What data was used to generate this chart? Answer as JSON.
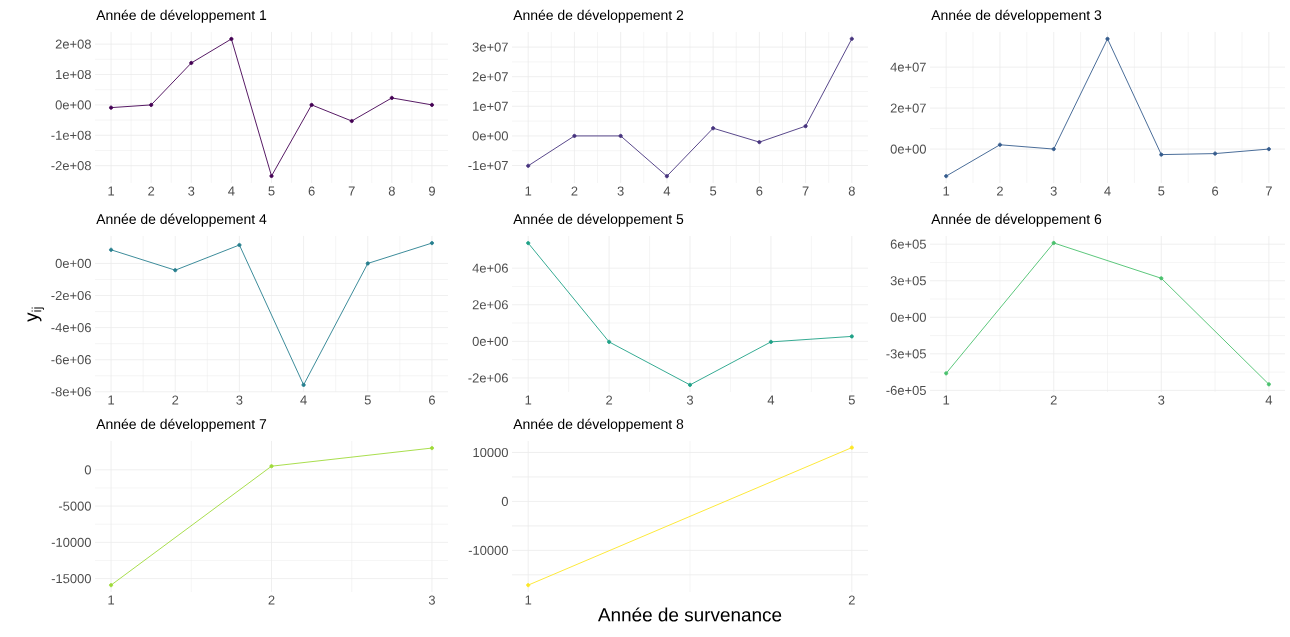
{
  "chart_data": [
    {
      "type": "line",
      "title": "Année de développement 1",
      "x": [
        1,
        2,
        3,
        4,
        5,
        6,
        7,
        8,
        9
      ],
      "values": [
        -9000000,
        0,
        138000000,
        217000000,
        -234000000,
        0,
        -53000000,
        23000000,
        0
      ],
      "color": "#440154",
      "xlim": [
        0.6,
        9.4
      ],
      "ylim": [
        -257000000,
        240000000
      ],
      "xticks": [
        1,
        2,
        3,
        4,
        5,
        6,
        7,
        8,
        9
      ],
      "yticks": [
        {
          "value": -200000000,
          "label": "-2e+08"
        },
        {
          "value": -100000000,
          "label": "-1e+08"
        },
        {
          "value": 0,
          "label": "0e+00"
        },
        {
          "value": 100000000,
          "label": "1e+08"
        },
        {
          "value": 200000000,
          "label": "2e+08"
        }
      ],
      "grid": true,
      "marker": "circle",
      "line_style": "solid"
    },
    {
      "type": "line",
      "title": "Année de développement 2",
      "x": [
        1,
        2,
        3,
        4,
        5,
        6,
        7,
        8
      ],
      "values": [
        -10100000,
        0,
        0,
        -13600000,
        2600000,
        -2100000,
        3300000,
        32800000
      ],
      "color": "#46337e",
      "xlim": [
        0.65,
        8.35
      ],
      "ylim": [
        -15900000,
        35100000
      ],
      "xticks": [
        1,
        2,
        3,
        4,
        5,
        6,
        7,
        8
      ],
      "yticks": [
        {
          "value": -10000000,
          "label": "-1e+07"
        },
        {
          "value": 0,
          "label": "0e+00"
        },
        {
          "value": 10000000,
          "label": "1e+07"
        },
        {
          "value": 20000000,
          "label": "2e+07"
        },
        {
          "value": 30000000,
          "label": "3e+07"
        }
      ],
      "grid": true,
      "marker": "circle",
      "line_style": "solid"
    },
    {
      "type": "line",
      "title": "Année de développement 3",
      "x": [
        1,
        2,
        3,
        4,
        5,
        6,
        7
      ],
      "values": [
        -13200000,
        2100000,
        0,
        53800000,
        -2700000,
        -2200000,
        0
      ],
      "color": "#365c8d",
      "xlim": [
        0.7,
        7.3
      ],
      "ylim": [
        -16550000,
        57150000
      ],
      "xticks": [
        1,
        2,
        3,
        4,
        5,
        6,
        7
      ],
      "yticks": [
        {
          "value": 0,
          "label": "0e+00"
        },
        {
          "value": 20000000,
          "label": "2e+07"
        },
        {
          "value": 40000000,
          "label": "4e+07"
        }
      ],
      "grid": true,
      "marker": "circle",
      "line_style": "solid"
    },
    {
      "type": "line",
      "title": "Année de développement 4",
      "ylabel": "y$_{ij}$",
      "x": [
        1,
        2,
        3,
        4,
        5,
        6
      ],
      "values": [
        850000,
        -420000,
        1150000,
        -7570000,
        0,
        1270000
      ],
      "color": "#277f8e",
      "xlim": [
        0.75,
        6.25
      ],
      "ylim": [
        -8012000,
        1712000
      ],
      "xticks": [
        1,
        2,
        3,
        4,
        5,
        6
      ],
      "yticks": [
        {
          "value": -8000000,
          "label": "-8e+06"
        },
        {
          "value": -6000000,
          "label": "-6e+06"
        },
        {
          "value": -4000000,
          "label": "-4e+06"
        },
        {
          "value": -2000000,
          "label": "-2e+06"
        },
        {
          "value": 0,
          "label": "0e+00"
        }
      ],
      "grid": true,
      "marker": "circle",
      "line_style": "solid"
    },
    {
      "type": "line",
      "title": "Année de développement 5",
      "x": [
        1,
        2,
        3,
        4,
        5
      ],
      "values": [
        5370000,
        -30000,
        -2380000,
        -30000,
        270000
      ],
      "color": "#1fa187",
      "xlim": [
        0.8,
        5.2
      ],
      "ylim": [
        -2767500,
        5757500
      ],
      "xticks": [
        1,
        2,
        3,
        4,
        5
      ],
      "yticks": [
        {
          "value": -2000000,
          "label": "-2e+06"
        },
        {
          "value": 0,
          "label": "0e+00"
        },
        {
          "value": 2000000,
          "label": "2e+06"
        },
        {
          "value": 4000000,
          "label": "4e+06"
        }
      ],
      "grid": true,
      "marker": "circle",
      "line_style": "solid"
    },
    {
      "type": "line",
      "title": "Année de développement 6",
      "x": [
        1,
        2,
        3,
        4
      ],
      "values": [
        -460000,
        610000,
        320000,
        -550000
      ],
      "color": "#4ac16d",
      "xlim": [
        0.85,
        4.15
      ],
      "ylim": [
        -613200,
        667200
      ],
      "xticks": [
        1,
        2,
        3,
        4
      ],
      "yticks": [
        {
          "value": -600000,
          "label": "-6e+05"
        },
        {
          "value": -300000,
          "label": "-3e+05"
        },
        {
          "value": 0,
          "label": "0e+00"
        },
        {
          "value": 300000,
          "label": "3e+05"
        },
        {
          "value": 600000,
          "label": "6e+05"
        }
      ],
      "grid": true,
      "marker": "circle",
      "line_style": "solid"
    },
    {
      "type": "line",
      "title": "Année de développement 7",
      "x": [
        1,
        2,
        3
      ],
      "values": [
        -15900,
        500,
        3000
      ],
      "color": "#9fda3a",
      "xlim": [
        0.9,
        3.1
      ],
      "ylim": [
        -16846,
        3976
      ],
      "xticks": [
        1,
        2,
        3
      ],
      "yticks": [
        -15000,
        -10000,
        -5000,
        0
      ],
      "grid": true,
      "marker": "circle",
      "line_style": "solid"
    },
    {
      "type": "line",
      "title": "Année de développement 8",
      "xlabel": "Année de survenance",
      "x": [
        1,
        2
      ],
      "values": [
        -17100,
        11000
      ],
      "color": "#fde725",
      "xlim": [
        0.95,
        2.05
      ],
      "ylim": [
        -18502,
        12352
      ],
      "xticks": [
        1,
        2
      ],
      "yticks": [
        {
          "value": -15000,
          "label": null
        },
        -10000,
        {
          "value": -5000,
          "label": null
        },
        0,
        {
          "value": 5000,
          "label": null
        },
        10000
      ],
      "grid": true,
      "marker": "circle",
      "line_style": "solid"
    }
  ]
}
